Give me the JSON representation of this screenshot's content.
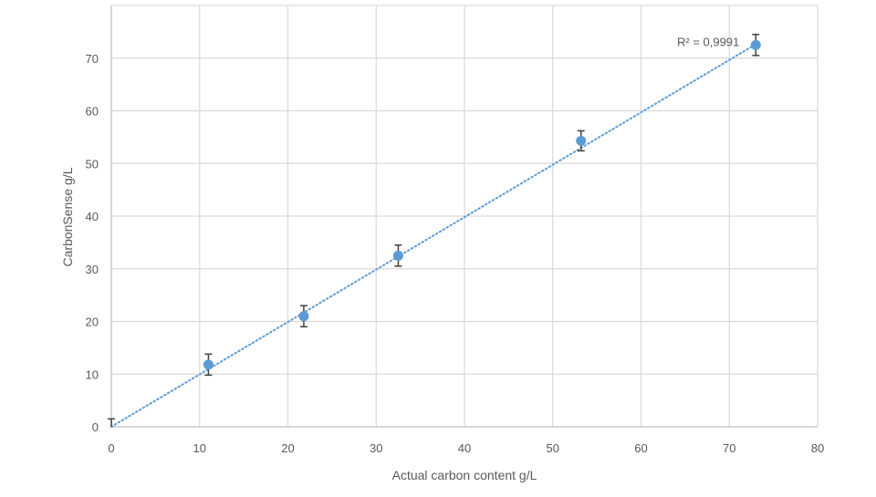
{
  "chart_data": {
    "type": "scatter",
    "title": "",
    "xlabel": "Actual carbon content g/L",
    "ylabel": "CarbonSense g/L",
    "xlim": [
      0,
      80
    ],
    "ylim": [
      0,
      80
    ],
    "x_ticks": [
      0,
      10,
      20,
      30,
      40,
      50,
      60,
      70,
      80
    ],
    "y_ticks": [
      0,
      10,
      20,
      30,
      40,
      50,
      60,
      70
    ],
    "x_tick_labels": [
      "0",
      "10",
      "20",
      "30",
      "40",
      "50",
      "60",
      "70",
      "80"
    ],
    "y_tick_labels": [
      "0",
      "10",
      "20",
      "30",
      "40",
      "50",
      "60",
      "70"
    ],
    "grid": true,
    "series": [
      {
        "color": "#5b9bd5",
        "points": [
          {
            "x": 0,
            "y": 0,
            "err": 1.5,
            "show_marker": false
          },
          {
            "x": 11,
            "y": 11.8,
            "err": 2.0,
            "show_marker": true
          },
          {
            "x": 21.8,
            "y": 21.0,
            "err": 2.0,
            "show_marker": true
          },
          {
            "x": 32.5,
            "y": 32.5,
            "err": 2.0,
            "show_marker": true
          },
          {
            "x": 53.2,
            "y": 54.3,
            "err": 1.9,
            "show_marker": true
          },
          {
            "x": 73,
            "y": 72.5,
            "err": 2.0,
            "show_marker": true
          }
        ]
      }
    ],
    "trendline": {
      "type": "linear",
      "style": "dotted",
      "color": "#5b9bd5",
      "x_start": 0,
      "x_end": 73,
      "slope": 0.995,
      "intercept": 0.0
    },
    "annotations": [
      {
        "text": "R² = 0,9991",
        "x": 73,
        "y": 72.5
      }
    ],
    "colors": {
      "grid": "#d9d9d9",
      "axis": "#bfbfbf",
      "error_bar": "#404040",
      "text": "#595959"
    }
  }
}
